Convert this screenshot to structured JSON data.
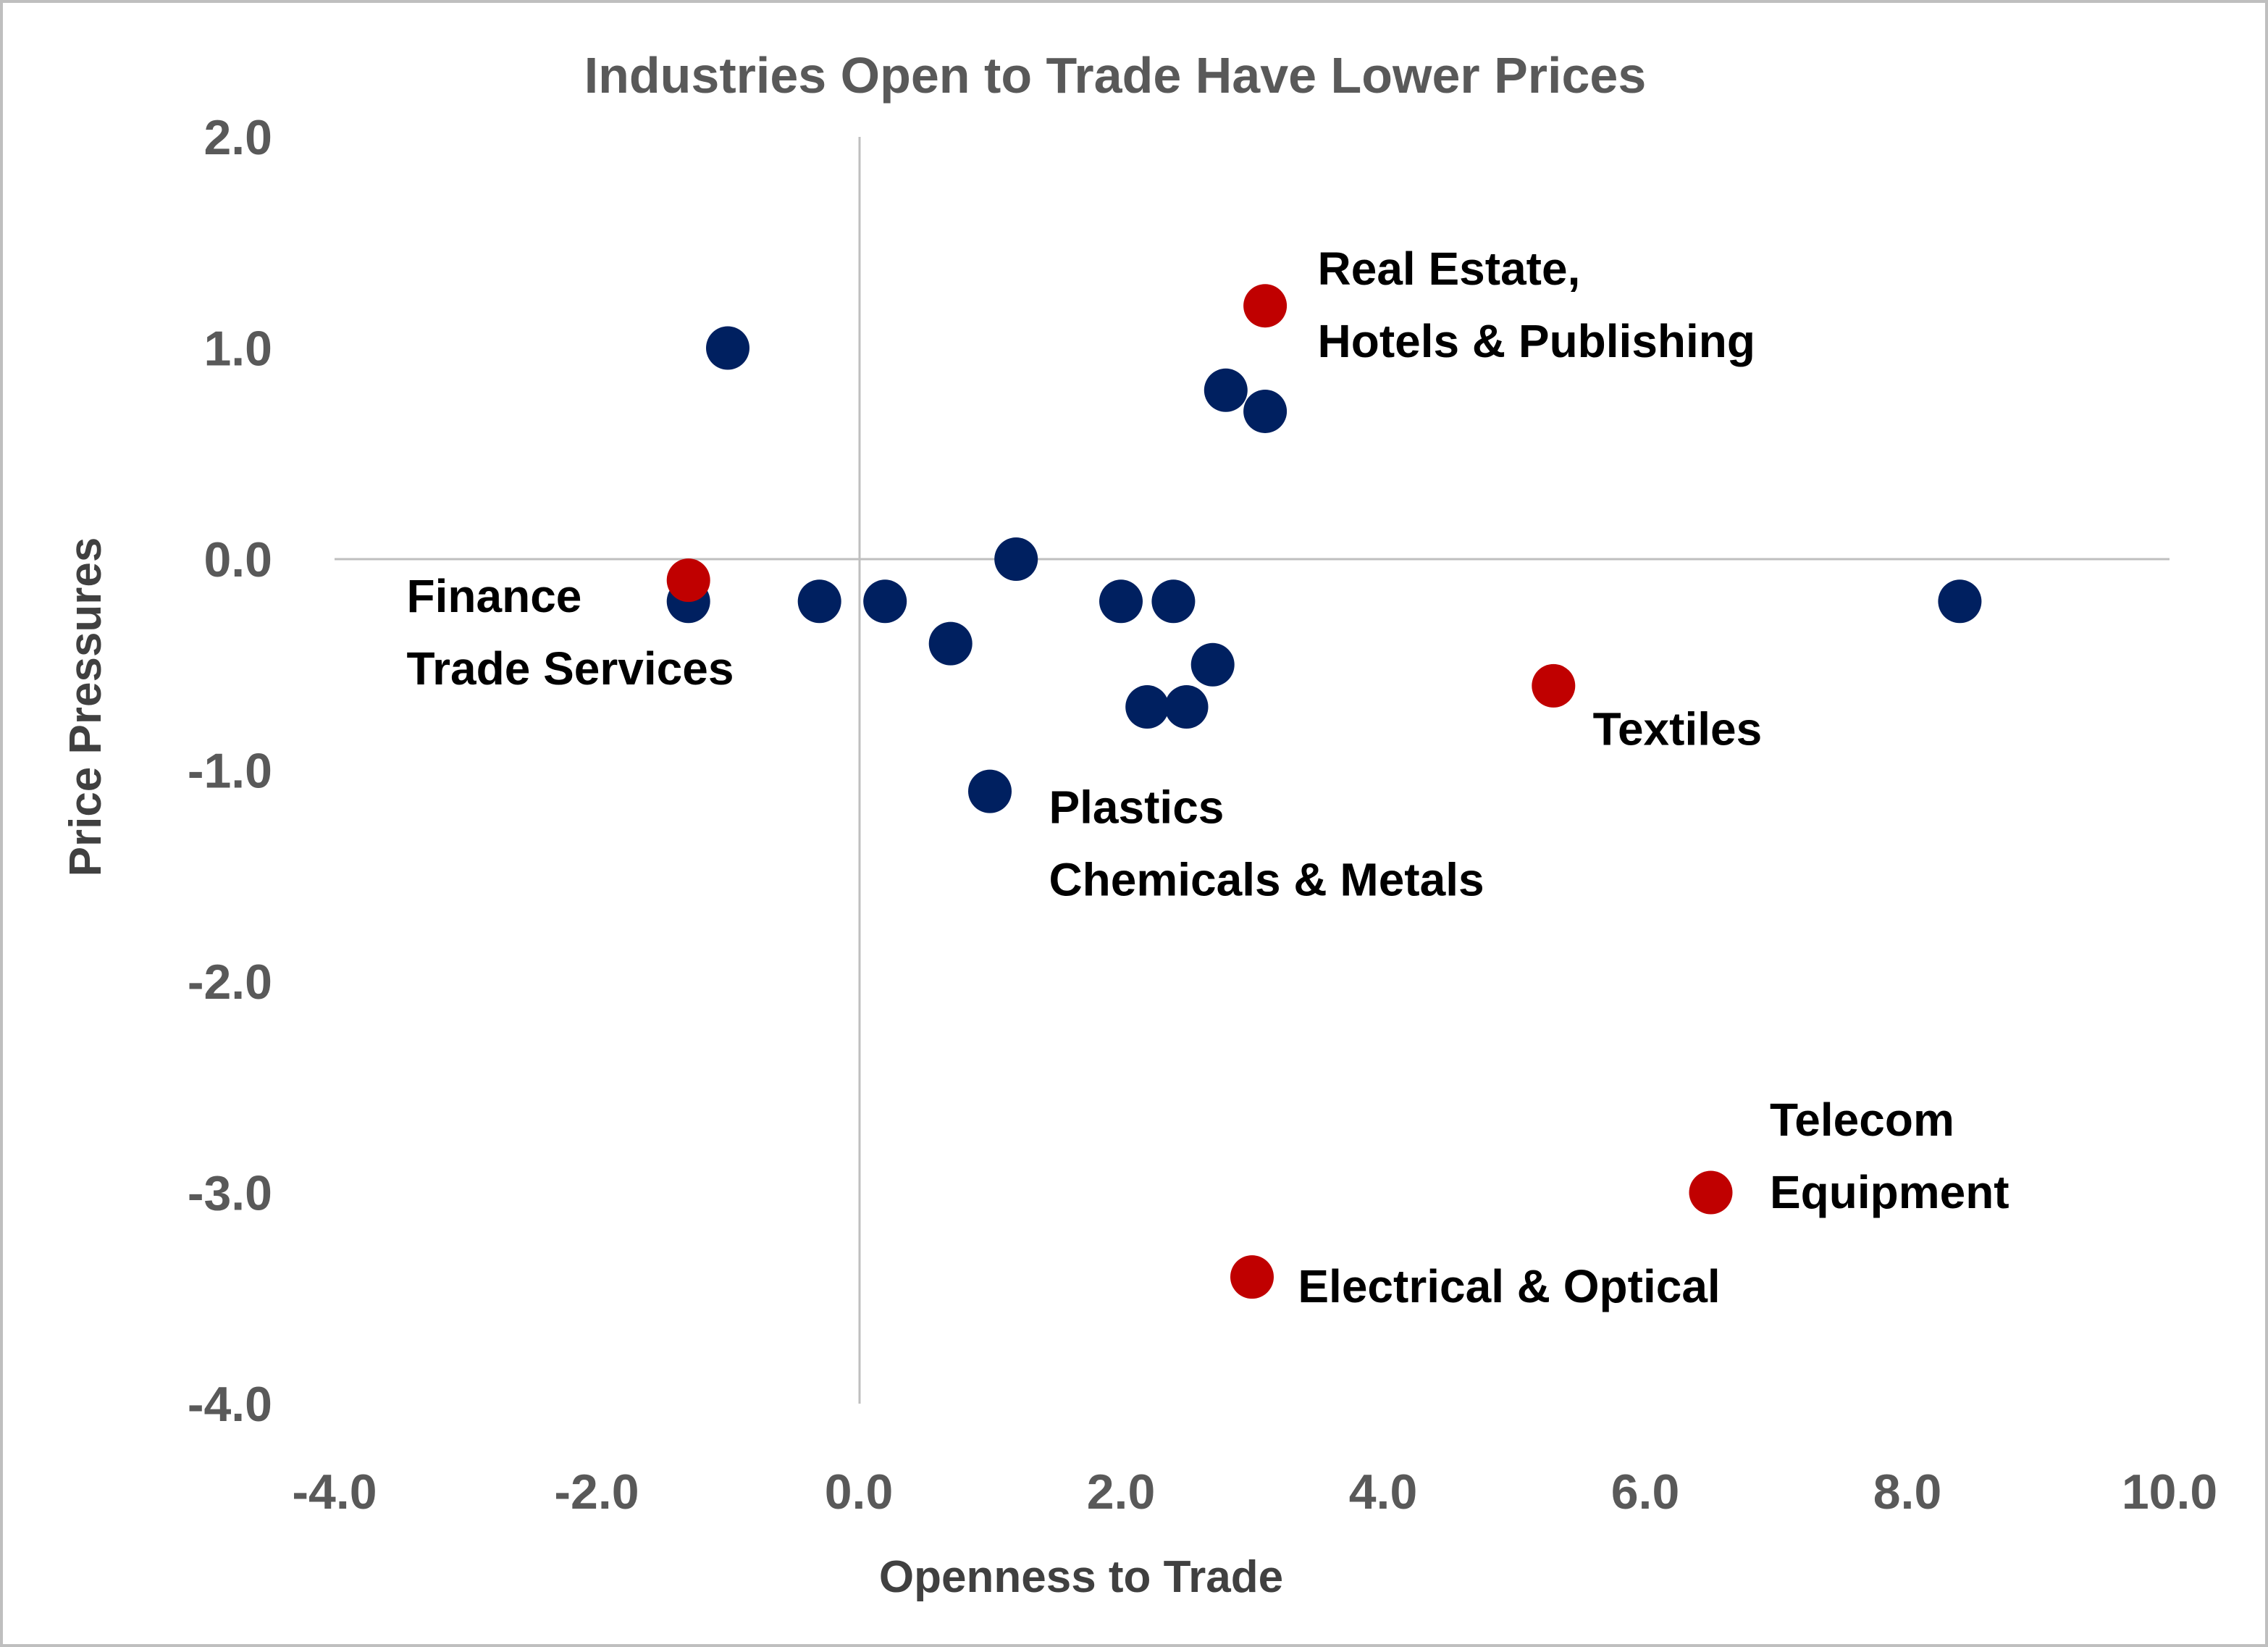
{
  "chart_data": {
    "type": "scatter",
    "title": "Industries Open to Trade Have Lower Prices",
    "xlabel": "Openness to Trade",
    "ylabel": "Price Pressures",
    "xlim": [
      -4.0,
      10.0
    ],
    "ylim": [
      -4.0,
      2.0
    ],
    "x_ticks": [
      "-4.0",
      "-2.0",
      "0.0",
      "2.0",
      "4.0",
      "6.0",
      "8.0",
      "10.0"
    ],
    "y_ticks": [
      "2.0",
      "1.0",
      "0.0",
      "-1.0",
      "-2.0",
      "-3.0",
      "-4.0"
    ],
    "grid": false,
    "colors": {
      "default": "#002060",
      "highlight": "#c00000"
    },
    "points": [
      {
        "x": -1.0,
        "y": 1.0,
        "highlight": false
      },
      {
        "x": -1.3,
        "y": -0.2,
        "highlight": false
      },
      {
        "x": -1.3,
        "y": -0.1,
        "highlight": true
      },
      {
        "x": -0.3,
        "y": -0.2,
        "highlight": false
      },
      {
        "x": 0.2,
        "y": -0.2,
        "highlight": false
      },
      {
        "x": 0.7,
        "y": -0.4,
        "highlight": false
      },
      {
        "x": 1.2,
        "y": 0.0,
        "highlight": false
      },
      {
        "x": 1.0,
        "y": -1.1,
        "highlight": false
      },
      {
        "x": 2.0,
        "y": -0.2,
        "highlight": false
      },
      {
        "x": 2.4,
        "y": -0.2,
        "highlight": false
      },
      {
        "x": 2.2,
        "y": -0.7,
        "highlight": false
      },
      {
        "x": 2.5,
        "y": -0.7,
        "highlight": false
      },
      {
        "x": 2.7,
        "y": -0.5,
        "highlight": false
      },
      {
        "x": 2.8,
        "y": 0.8,
        "highlight": false
      },
      {
        "x": 3.1,
        "y": 0.7,
        "highlight": false
      },
      {
        "x": 3.1,
        "y": 1.2,
        "highlight": true
      },
      {
        "x": 3.0,
        "y": -3.4,
        "highlight": true
      },
      {
        "x": 5.3,
        "y": -0.6,
        "highlight": true
      },
      {
        "x": 6.5,
        "y": -3.0,
        "highlight": true
      },
      {
        "x": 8.4,
        "y": -0.2,
        "highlight": false
      }
    ],
    "annotations": [
      {
        "lines": [
          "Real Estate,",
          "Hotels & Publishing"
        ],
        "x": 3.5,
        "y": 1.3
      },
      {
        "lines": [
          "Finance",
          "Trade Services"
        ],
        "x": -3.45,
        "y": -0.25
      },
      {
        "lines": [
          "Plastics",
          "Chemicals & Metals"
        ],
        "x": 1.45,
        "y": -1.25
      },
      {
        "lines": [
          "Textiles"
        ],
        "x": 5.6,
        "y": -0.88
      },
      {
        "lines": [
          "Telecom",
          "Equipment"
        ],
        "x": 6.95,
        "y": -2.73
      },
      {
        "lines": [
          "Electrical & Optical"
        ],
        "x": 3.35,
        "y": -3.52
      }
    ]
  }
}
